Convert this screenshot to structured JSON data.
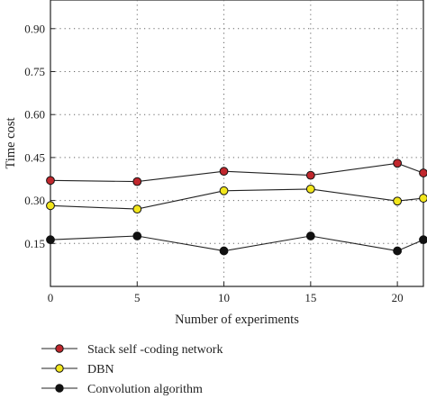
{
  "chart_data": {
    "type": "line",
    "title": "",
    "xlabel": "Number of experiments",
    "ylabel": "Time cost",
    "xlim": [
      0,
      21.5
    ],
    "ylim": [
      0,
      1.0
    ],
    "xticks": [
      0,
      5,
      10,
      15,
      20
    ],
    "xtick_labels": [
      "0",
      "5",
      "10",
      "15",
      "20"
    ],
    "yticks": [
      0.15,
      0.3,
      0.45,
      0.6,
      0.75,
      0.9
    ],
    "ytick_labels": [
      "0.15",
      "0.30",
      "0.45",
      "0.60",
      "0.75",
      "0.90"
    ],
    "grid": true,
    "legend_position": "bottom",
    "x": [
      0,
      5,
      10,
      15,
      20,
      21.5
    ],
    "series": [
      {
        "name": "Stack self -coding network",
        "color": "#c0272d",
        "values": [
          0.37,
          0.366,
          0.402,
          0.388,
          0.43,
          0.396
        ]
      },
      {
        "name": "DBN",
        "color": "#f2e61c",
        "values": [
          0.282,
          0.27,
          0.334,
          0.34,
          0.298,
          0.308
        ]
      },
      {
        "name": "Convolution algorithm",
        "color": "#111111",
        "values": [
          0.163,
          0.176,
          0.124,
          0.176,
          0.124,
          0.163
        ]
      }
    ]
  }
}
